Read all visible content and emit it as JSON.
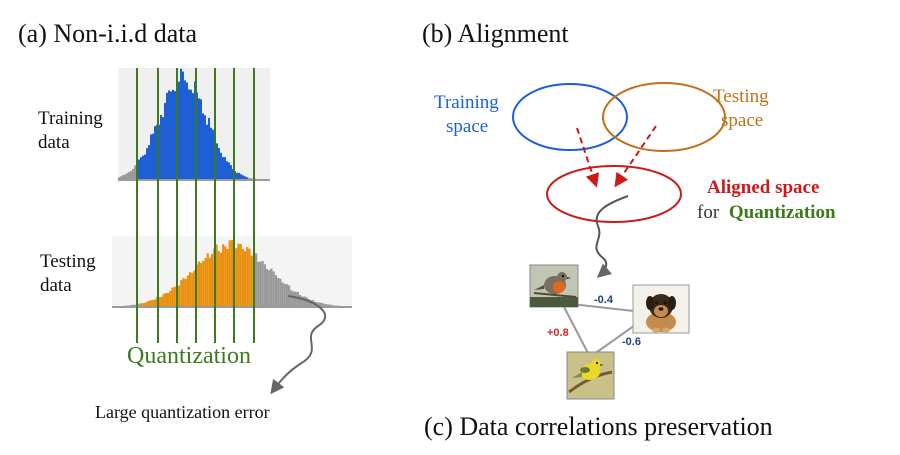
{
  "panel_a": {
    "title": "(a) Non-i.i.d data",
    "training_label": [
      "Training",
      "data"
    ],
    "testing_label": [
      "Testing",
      "data"
    ],
    "quantization_label": "Quantization",
    "error_label": "Large quantization error",
    "colors": {
      "training": "#1f5fd6",
      "testing": "#e8900f",
      "tail": "#9a9a9a",
      "bins": "#3c7a1c"
    }
  },
  "panel_b": {
    "title": "(b) Alignment",
    "training_space_label": [
      "Training",
      "space"
    ],
    "testing_space_label": [
      "Testing",
      "space"
    ],
    "aligned_label": "Aligned space",
    "for_word": "for",
    "quantization_word": "Quantization",
    "colors": {
      "training": "#1f5fd6",
      "testing": "#c2711a",
      "aligned": "#cc1a1a",
      "quant": "#3c7a1c"
    }
  },
  "panel_c": {
    "title": "(c) Data correlations preservation",
    "images": {
      "bird": "robin-photo",
      "dog": "puppy-photo",
      "finch": "warbler-photo"
    },
    "edges": {
      "bird_dog": "-0.4",
      "dog_finch": "-0.6",
      "bird_finch": "+0.8"
    },
    "colors": {
      "negative": "#1a3f8a",
      "positive": "#cc2a2a"
    }
  }
}
